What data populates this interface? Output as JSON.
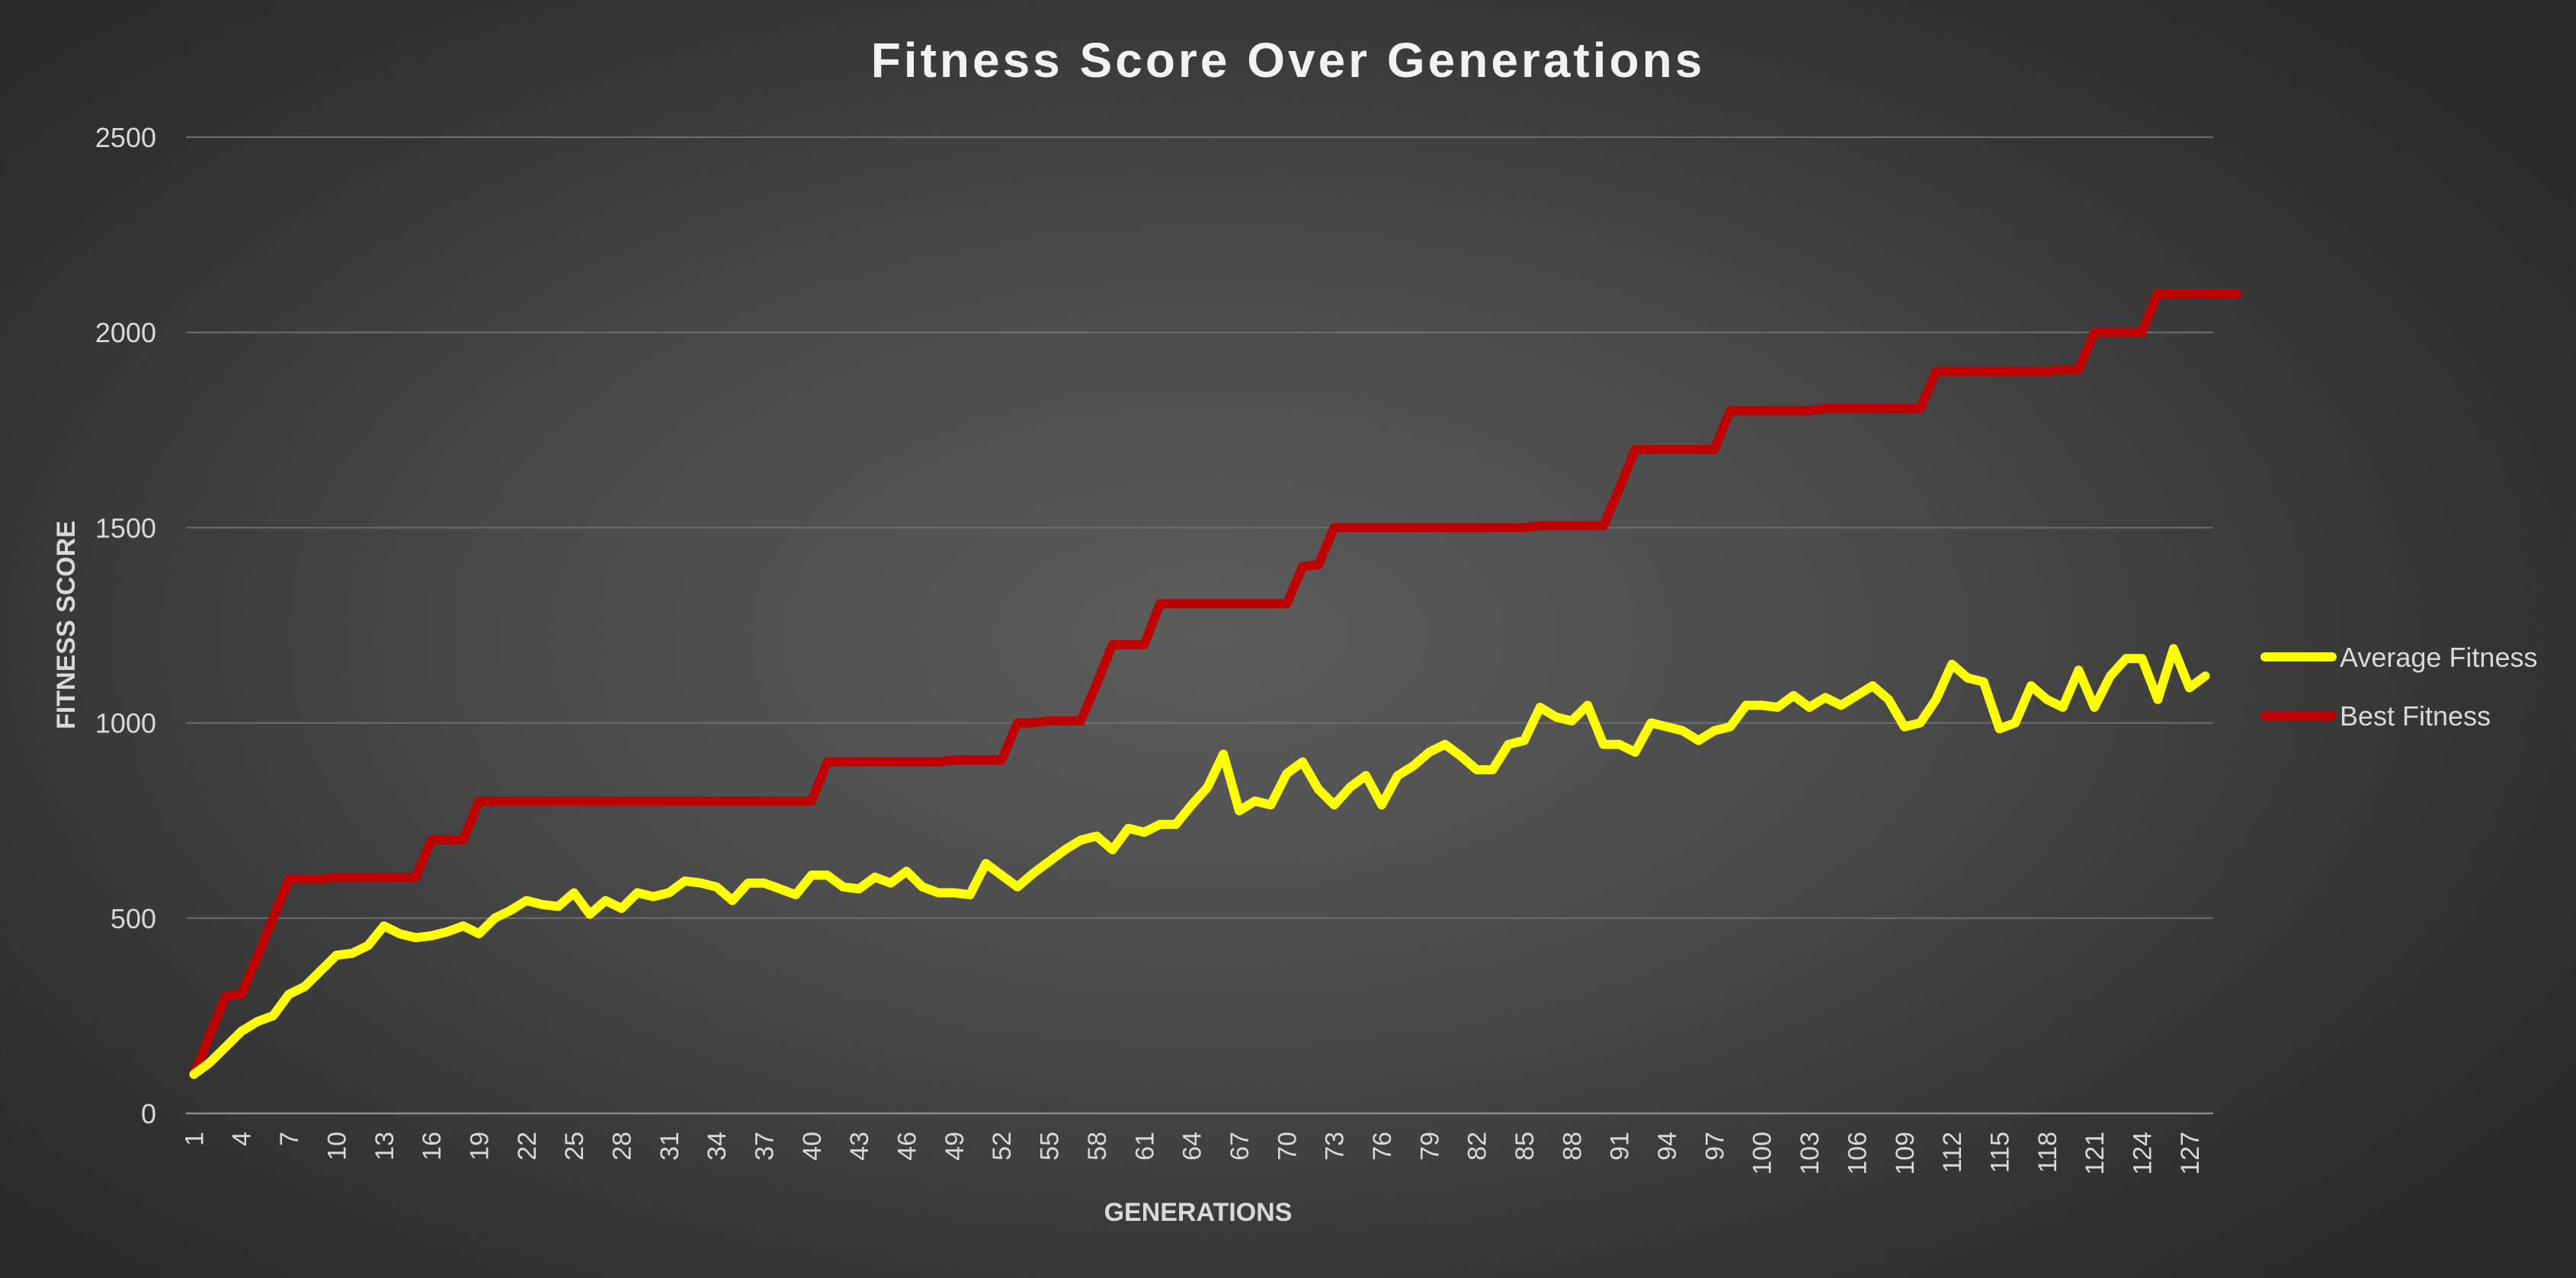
{
  "chart_data": {
    "type": "line",
    "title": "Fitness Score Over Generations",
    "xlabel": "GENERATIONS",
    "ylabel": "FITNESS SCORE",
    "ylim": [
      0,
      2500
    ],
    "yticks": [
      0,
      500,
      1000,
      1500,
      2000,
      2500
    ],
    "x_start": 1,
    "x_end": 128,
    "xtick_labels": [
      "1",
      "4",
      "7",
      "10",
      "13",
      "16",
      "19",
      "22",
      "25",
      "28",
      "31",
      "34",
      "37",
      "40",
      "43",
      "46",
      "49",
      "52",
      "55",
      "58",
      "61",
      "64",
      "67",
      "70",
      "73",
      "76",
      "79",
      "82",
      "85",
      "88",
      "91",
      "94",
      "97",
      "100",
      "103",
      "106",
      "109",
      "112",
      "115",
      "118",
      "121",
      "124",
      "127"
    ],
    "grid": "horizontal",
    "legend_position": "right",
    "series": [
      {
        "name": "Average Fitness",
        "color": "#ffff00",
        "values": [
          100,
          130,
          170,
          210,
          235,
          250,
          305,
          325,
          365,
          405,
          410,
          430,
          480,
          460,
          450,
          455,
          465,
          480,
          460,
          500,
          520,
          545,
          535,
          530,
          565,
          510,
          545,
          525,
          565,
          555,
          565,
          595,
          590,
          580,
          545,
          590,
          590,
          575,
          560,
          610,
          610,
          580,
          575,
          605,
          590,
          620,
          580,
          565,
          565,
          560,
          640,
          610,
          580,
          615,
          645,
          675,
          700,
          710,
          675,
          730,
          720,
          740,
          740,
          790,
          835,
          920,
          775,
          800,
          790,
          870,
          900,
          830,
          790,
          835,
          865,
          790,
          865,
          890,
          925,
          945,
          915,
          880,
          880,
          945,
          955,
          1040,
          1015,
          1005,
          1045,
          945,
          945,
          925,
          1000,
          990,
          980,
          955,
          980,
          990,
          1045,
          1045,
          1040,
          1070,
          1040,
          1065,
          1045,
          1070,
          1095,
          1060,
          990,
          1000,
          1060,
          1150,
          1115,
          1105,
          985,
          1000,
          1095,
          1060,
          1040,
          1135,
          1040,
          1120,
          1165,
          1165,
          1060,
          1190,
          1090,
          1120
        ]
      },
      {
        "name": "Best Fitness",
        "color": "#c00000",
        "values": [
          100,
          200,
          300,
          305,
          400,
          500,
          600,
          600,
          600,
          605,
          605,
          605,
          605,
          605,
          605,
          700,
          700,
          700,
          800,
          800,
          800,
          800,
          800,
          800,
          800,
          800,
          800,
          800,
          800,
          800,
          800,
          800,
          800,
          800,
          800,
          800,
          800,
          800,
          800,
          800,
          900,
          900,
          900,
          900,
          900,
          900,
          900,
          900,
          905,
          905,
          905,
          905,
          1000,
          1000,
          1005,
          1005,
          1005,
          1100,
          1200,
          1200,
          1200,
          1305,
          1305,
          1305,
          1305,
          1305,
          1305,
          1305,
          1305,
          1305,
          1400,
          1405,
          1500,
          1500,
          1500,
          1500,
          1500,
          1500,
          1500,
          1500,
          1500,
          1500,
          1500,
          1500,
          1500,
          1505,
          1505,
          1505,
          1505,
          1505,
          1600,
          1700,
          1700,
          1700,
          1700,
          1700,
          1700,
          1800,
          1800,
          1800,
          1800,
          1800,
          1800,
          1805,
          1805,
          1805,
          1805,
          1805,
          1805,
          1805,
          1900,
          1900,
          1900,
          1900,
          1900,
          1900,
          1900,
          1900,
          1905,
          1905,
          2000,
          2000,
          2000,
          2000,
          2100,
          2100,
          2100,
          2100,
          2100,
          2100
        ]
      }
    ]
  }
}
